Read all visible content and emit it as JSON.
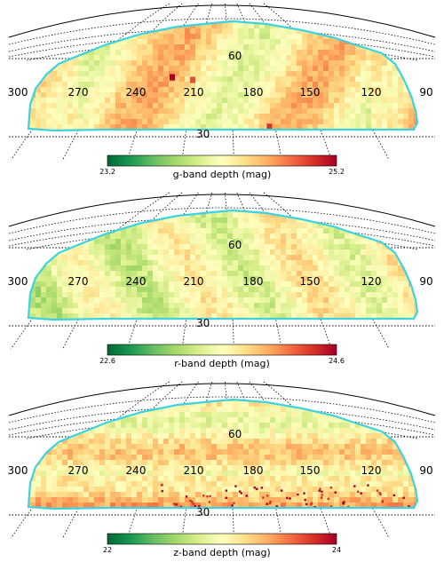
{
  "chart_data": [
    {
      "type": "heatmap",
      "projection": "Aitoff (north cap)",
      "ra_tick_labels": [
        "300",
        "270",
        "240",
        "210",
        "180",
        "150",
        "120",
        "90"
      ],
      "dec_tick_labels": [
        "60",
        "30"
      ],
      "colorbar": {
        "label": "g-band depth (mag)",
        "min": "23.2",
        "max": "25.2",
        "cmap": "RdYlGn_r"
      },
      "footprint_color": "#3cd3e0",
      "hotspots": [
        {
          "ra": 216,
          "dec": 53,
          "value": 25.2
        },
        {
          "ra": 151,
          "dec": 34,
          "value": 25.0
        },
        {
          "ra": 201,
          "dec": 52,
          "value": 24.9
        }
      ]
    },
    {
      "type": "heatmap",
      "projection": "Aitoff (north cap)",
      "ra_tick_labels": [
        "300",
        "270",
        "240",
        "210",
        "180",
        "150",
        "120",
        "90"
      ],
      "dec_tick_labels": [
        "60",
        "30"
      ],
      "colorbar": {
        "label": "r-band depth (mag)",
        "min": "22.6",
        "max": "24.6",
        "cmap": "RdYlGn_r"
      },
      "footprint_color": "#3cd3e0",
      "hotspots": []
    },
    {
      "type": "heatmap",
      "projection": "Aitoff (north cap)",
      "ra_tick_labels": [
        "300",
        "270",
        "240",
        "210",
        "180",
        "150",
        "120",
        "90"
      ],
      "dec_tick_labels": [
        "60",
        "30"
      ],
      "colorbar": {
        "label": "z-band depth (mag)",
        "min": "22",
        "max": "24",
        "cmap": "RdYlGn_r"
      },
      "footprint_color": "#3cd3e0",
      "hotspots": []
    }
  ]
}
